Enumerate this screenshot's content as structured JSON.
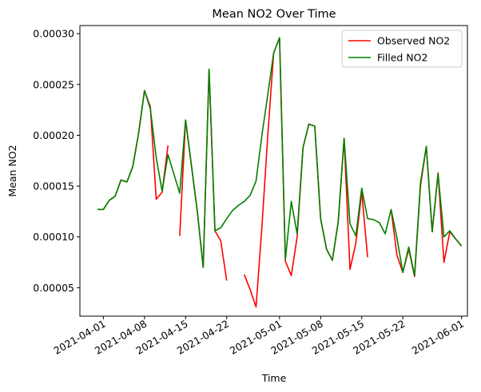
{
  "chart_data": {
    "type": "line",
    "title": "Mean NO2 Over Time",
    "xlabel": "Time",
    "ylabel": "Mean NO2",
    "xlim": [
      "2021-03-28",
      "2021-06-02"
    ],
    "ylim": [
      2.2e-05,
      0.000308
    ],
    "x_ticks": [
      "2021-04-01",
      "2021-04-08",
      "2021-04-15",
      "2021-04-22",
      "2021-05-01",
      "2021-05-08",
      "2021-05-15",
      "2021-05-22",
      "2021-06-01"
    ],
    "y_ticks": [
      {
        "value": 5e-05,
        "label": "0.00005"
      },
      {
        "value": 0.0001,
        "label": "0.00010"
      },
      {
        "value": 0.00015,
        "label": "0.00015"
      },
      {
        "value": 0.0002,
        "label": "0.00020"
      },
      {
        "value": 0.00025,
        "label": "0.00025"
      },
      {
        "value": 0.0003,
        "label": "0.00030"
      }
    ],
    "grid": false,
    "legend_position": "top-right",
    "series": [
      {
        "name": "Observed NO2",
        "color": "#ff0000",
        "segments": [
          [
            [
              "2021-03-31",
              0.000127
            ],
            [
              "2021-04-01",
              0.000127
            ],
            [
              "2021-04-02",
              0.000136
            ],
            [
              "2021-04-03",
              0.00014
            ],
            [
              "2021-04-04",
              0.000156
            ],
            [
              "2021-04-05",
              0.000154
            ],
            [
              "2021-04-06",
              0.000169
            ],
            [
              "2021-04-07",
              0.000202
            ],
            [
              "2021-04-08",
              0.000244
            ],
            [
              "2021-04-09",
              0.000228
            ],
            [
              "2021-04-10",
              0.000137
            ],
            [
              "2021-04-11",
              0.000144
            ],
            [
              "2021-04-12",
              0.00019
            ]
          ],
          [
            [
              "2021-04-14",
              0.000101
            ],
            [
              "2021-04-15",
              0.000215
            ],
            [
              "2021-04-16",
              0.00017
            ],
            [
              "2021-04-17",
              0.000125
            ],
            [
              "2021-04-18",
              7e-05
            ],
            [
              "2021-04-19",
              0.000265
            ],
            [
              "2021-04-20",
              0.000106
            ],
            [
              "2021-04-21",
              9.6e-05
            ],
            [
              "2021-04-22",
              5.7e-05
            ]
          ],
          [
            [
              "2021-04-25",
              6.3e-05
            ],
            [
              "2021-04-26",
              4.8e-05
            ],
            [
              "2021-04-27",
              3.1e-05
            ],
            [
              "2021-04-28",
              0.00011
            ],
            [
              "2021-04-29",
              0.0002
            ],
            [
              "2021-04-30",
              0.000281
            ],
            [
              "2021-05-01",
              0.000296
            ],
            [
              "2021-05-02",
              7.6e-05
            ],
            [
              "2021-05-03",
              6.2e-05
            ],
            [
              "2021-05-04",
              0.0001
            ],
            [
              "2021-05-05",
              0.000188
            ],
            [
              "2021-05-06",
              0.000211
            ],
            [
              "2021-05-07",
              0.000209
            ],
            [
              "2021-05-08",
              0.000118
            ],
            [
              "2021-05-09",
              8.8e-05
            ],
            [
              "2021-05-10",
              7.7e-05
            ],
            [
              "2021-05-11",
              0.000115
            ],
            [
              "2021-05-12",
              0.000197
            ],
            [
              "2021-05-13",
              6.8e-05
            ],
            [
              "2021-05-14",
              9.4e-05
            ],
            [
              "2021-05-15",
              0.000144
            ],
            [
              "2021-05-16",
              8e-05
            ]
          ],
          [
            [
              "2021-05-20",
              0.000127
            ],
            [
              "2021-05-21",
              8.2e-05
            ],
            [
              "2021-05-22",
              6.5e-05
            ],
            [
              "2021-05-23",
              8.8e-05
            ],
            [
              "2021-05-24",
              6.1e-05
            ],
            [
              "2021-05-25",
              0.00015
            ],
            [
              "2021-05-26",
              0.000189
            ],
            [
              "2021-05-27",
              0.000105
            ],
            [
              "2021-05-28",
              0.000163
            ],
            [
              "2021-05-29",
              7.5e-05
            ],
            [
              "2021-05-30",
              0.000105
            ],
            [
              "2021-05-31",
              9.8e-05
            ],
            [
              "2021-06-01",
              9.1e-05
            ]
          ]
        ]
      },
      {
        "name": "Filled NO2",
        "color": "#008000",
        "segments": [
          [
            [
              "2021-03-31",
              0.000127
            ],
            [
              "2021-04-01",
              0.000127
            ],
            [
              "2021-04-02",
              0.000136
            ],
            [
              "2021-04-03",
              0.00014
            ],
            [
              "2021-04-04",
              0.000156
            ],
            [
              "2021-04-05",
              0.000154
            ],
            [
              "2021-04-06",
              0.000169
            ],
            [
              "2021-04-07",
              0.000202
            ],
            [
              "2021-04-08",
              0.000244
            ],
            [
              "2021-04-09",
              0.000226
            ],
            [
              "2021-04-10",
              0.000178
            ],
            [
              "2021-04-11",
              0.000145
            ],
            [
              "2021-04-12",
              0.000181
            ],
            [
              "2021-04-13",
              0.000162
            ],
            [
              "2021-04-14",
              0.000143
            ],
            [
              "2021-04-15",
              0.000215
            ],
            [
              "2021-04-16",
              0.00017
            ],
            [
              "2021-04-17",
              0.000125
            ],
            [
              "2021-04-18",
              7e-05
            ],
            [
              "2021-04-19",
              0.000265
            ],
            [
              "2021-04-20",
              0.000106
            ],
            [
              "2021-04-21",
              0.000109
            ],
            [
              "2021-04-22",
              0.000118
            ],
            [
              "2021-04-23",
              0.000126
            ],
            [
              "2021-04-24",
              0.000131
            ],
            [
              "2021-04-25",
              0.000135
            ],
            [
              "2021-04-26",
              0.000141
            ],
            [
              "2021-04-27",
              0.000155
            ],
            [
              "2021-04-28",
              0.0002
            ],
            [
              "2021-04-29",
              0.00024
            ],
            [
              "2021-04-30",
              0.000281
            ],
            [
              "2021-05-01",
              0.000296
            ],
            [
              "2021-05-02",
              7.8e-05
            ],
            [
              "2021-05-03",
              0.000135
            ],
            [
              "2021-05-04",
              0.000103
            ],
            [
              "2021-05-05",
              0.000188
            ],
            [
              "2021-05-06",
              0.000211
            ],
            [
              "2021-05-07",
              0.000209
            ],
            [
              "2021-05-08",
              0.000118
            ],
            [
              "2021-05-09",
              8.8e-05
            ],
            [
              "2021-05-10",
              7.7e-05
            ],
            [
              "2021-05-11",
              0.000115
            ],
            [
              "2021-05-12",
              0.000197
            ],
            [
              "2021-05-13",
              0.000113
            ],
            [
              "2021-05-14",
              0.000101
            ],
            [
              "2021-05-15",
              0.000148
            ],
            [
              "2021-05-16",
              0.000118
            ],
            [
              "2021-05-17",
              0.000117
            ],
            [
              "2021-05-18",
              0.000114
            ],
            [
              "2021-05-19",
              0.000103
            ],
            [
              "2021-05-20",
              0.000127
            ],
            [
              "2021-05-21",
              9.9e-05
            ],
            [
              "2021-05-22",
              6.5e-05
            ],
            [
              "2021-05-23",
              9e-05
            ],
            [
              "2021-05-24",
              6.2e-05
            ],
            [
              "2021-05-25",
              0.000153
            ],
            [
              "2021-05-26",
              0.000189
            ],
            [
              "2021-05-27",
              0.000105
            ],
            [
              "2021-05-28",
              0.000162
            ],
            [
              "2021-05-29",
              0.0001
            ],
            [
              "2021-05-30",
              0.000106
            ],
            [
              "2021-05-31",
              9.8e-05
            ],
            [
              "2021-06-01",
              9.1e-05
            ]
          ]
        ]
      }
    ]
  }
}
